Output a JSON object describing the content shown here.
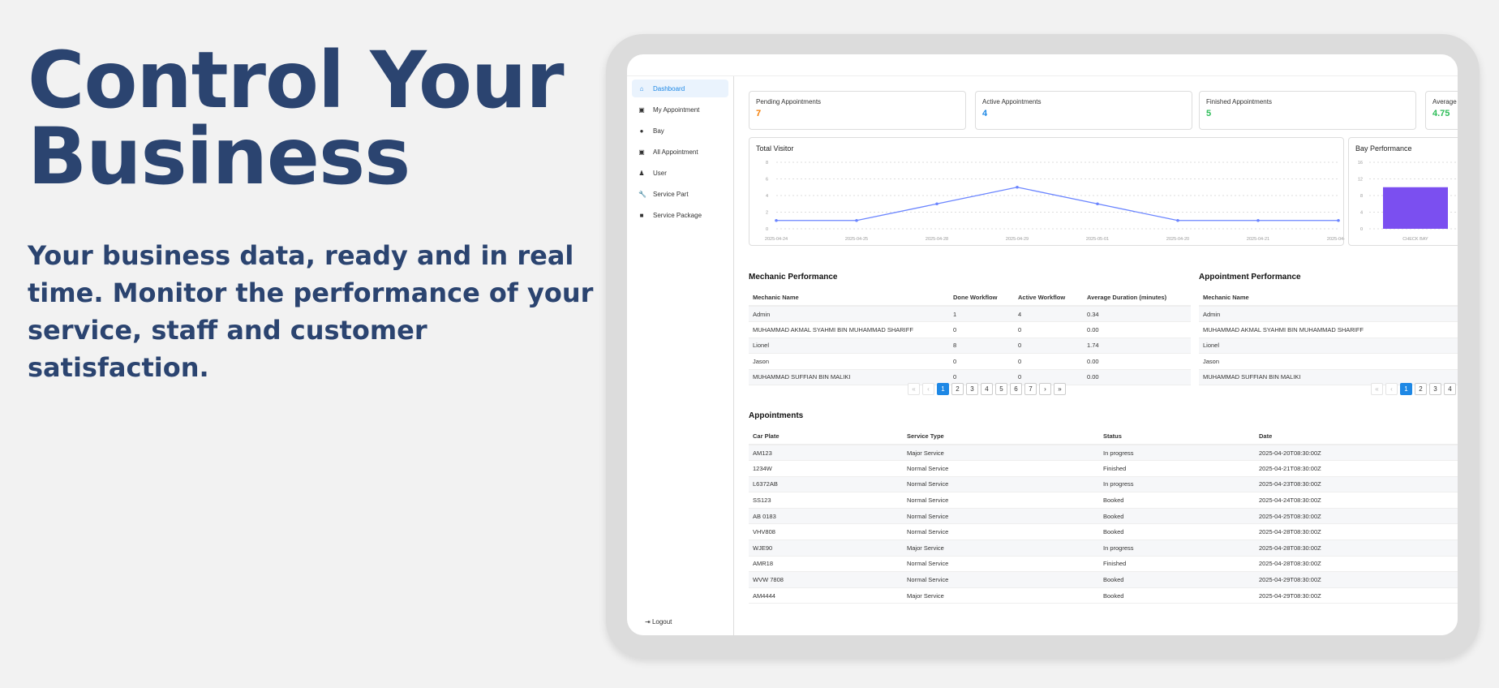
{
  "hero": {
    "title_line1": "Control Your",
    "title_line2": "Business",
    "subtitle": "Your business data, ready and in real time. Monitor the performance of your service, staff and customer satisfaction."
  },
  "sidebar": {
    "items": [
      {
        "label": "Dashboard",
        "icon": "home-icon",
        "glyph": "⌂"
      },
      {
        "label": "My Appointment",
        "icon": "calendar-icon",
        "glyph": "▣"
      },
      {
        "label": "Bay",
        "icon": "garage-icon",
        "glyph": "●"
      },
      {
        "label": "All Appointment",
        "icon": "calendar-icon",
        "glyph": "▣"
      },
      {
        "label": "User",
        "icon": "user-icon",
        "glyph": "♟"
      },
      {
        "label": "Service Part",
        "icon": "wrench-icon",
        "glyph": "🔧"
      },
      {
        "label": "Service Package",
        "icon": "package-icon",
        "glyph": "■"
      }
    ],
    "logout": "Logout"
  },
  "cards": [
    {
      "label": "Pending Appointments",
      "value": "7",
      "color": "#f57c00"
    },
    {
      "label": "Active Appointments",
      "value": "4",
      "color": "#1e88e5"
    },
    {
      "label": "Finished Appointments",
      "value": "5",
      "color": "#2ebd59"
    },
    {
      "label": "Average R",
      "value": "4.75",
      "color": "#2ebd59"
    }
  ],
  "chart_data": [
    {
      "type": "line",
      "title": "Total Visitor",
      "categories": [
        "2025-04-24",
        "2025-04-25",
        "2025-04-28",
        "2025-04-29",
        "2025-05-01",
        "2025-04-20",
        "2025-04-21",
        "2025-04-23"
      ],
      "values": [
        1,
        1,
        3,
        5,
        3,
        1,
        1,
        1
      ],
      "ylim": [
        0,
        8
      ],
      "yticks": [
        "0",
        "2",
        "4",
        "6",
        "8"
      ],
      "grid": true,
      "color": "#6b85ff"
    },
    {
      "type": "bar",
      "title": "Bay Performance",
      "categories": [
        "CHECK BAY"
      ],
      "values": [
        10
      ],
      "ylim": [
        0,
        16
      ],
      "yticks": [
        "0",
        "4",
        "8",
        "12",
        "16"
      ],
      "grid": true,
      "color": "#7b4ff0"
    }
  ],
  "mechanic": {
    "title": "Mechanic Performance",
    "headers": [
      "Mechanic Name",
      "Done Workflow",
      "Active Workflow",
      "Average Duration (minutes)"
    ],
    "rows": [
      [
        "Admin",
        "1",
        "4",
        "0.34"
      ],
      [
        "MUHAMMAD AKMAL SYAHMI BIN MUHAMMAD SHARIFF",
        "0",
        "0",
        "0.00"
      ],
      [
        "Lionel",
        "8",
        "0",
        "1.74"
      ],
      [
        "Jason",
        "0",
        "0",
        "0.00"
      ],
      [
        "MUHAMMAD SUFFIAN BIN MALIKI",
        "0",
        "0",
        "0.00"
      ]
    ],
    "pages": [
      "«",
      "‹",
      "1",
      "2",
      "3",
      "4",
      "5",
      "6",
      "7",
      "›",
      "»"
    ]
  },
  "appointment_perf": {
    "title": "Appointment Performance",
    "headers": [
      "Mechanic Name"
    ],
    "rows": [
      [
        "Admin"
      ],
      [
        "MUHAMMAD AKMAL SYAHMI BIN MUHAMMAD SHARIFF"
      ],
      [
        "Lionel"
      ],
      [
        "Jason"
      ],
      [
        "MUHAMMAD SUFFIAN BIN MALIKI"
      ]
    ],
    "pages": [
      "«",
      "‹",
      "1",
      "2",
      "3",
      "4",
      "5",
      "6"
    ]
  },
  "appointments": {
    "title": "Appointments",
    "headers": [
      "Car Plate",
      "Service Type",
      "Status",
      "Date"
    ],
    "rows": [
      [
        "AM123",
        "Major Service",
        "In progress",
        "2025-04-20T08:30:00Z"
      ],
      [
        "1234W",
        "Normal Service",
        "Finished",
        "2025-04-21T08:30:00Z"
      ],
      [
        "L6372AB",
        "Normal Service",
        "In progress",
        "2025-04-23T08:30:00Z"
      ],
      [
        "SS123",
        "Normal Service",
        "Booked",
        "2025-04-24T08:30:00Z"
      ],
      [
        "AB 0183",
        "Normal Service",
        "Booked",
        "2025-04-25T08:30:00Z"
      ],
      [
        "VHV808",
        "Normal Service",
        "Booked",
        "2025-04-28T08:30:00Z"
      ],
      [
        "WJE90",
        "Major Service",
        "In progress",
        "2025-04-28T08:30:00Z"
      ],
      [
        "AMR18",
        "Normal Service",
        "Finished",
        "2025-04-28T08:30:00Z"
      ],
      [
        "WVW 7808",
        "Normal Service",
        "Booked",
        "2025-04-29T08:30:00Z"
      ],
      [
        "AM4444",
        "Major Service",
        "Booked",
        "2025-04-29T08:30:00Z"
      ]
    ]
  }
}
